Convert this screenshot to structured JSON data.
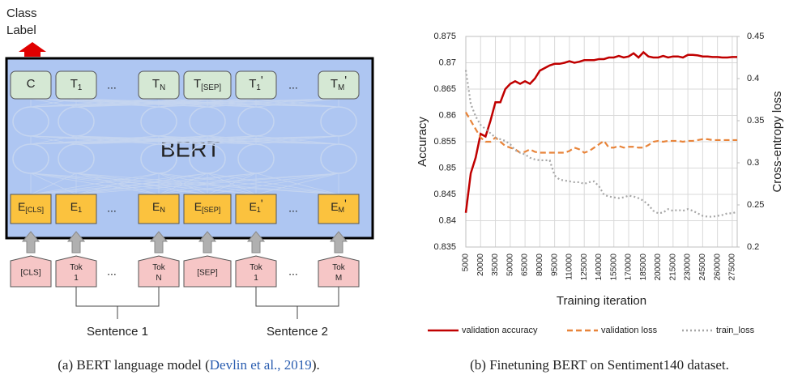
{
  "diagram": {
    "class_label": [
      "Class",
      "Label"
    ],
    "model_name": "BERT",
    "outputs": [
      {
        "text": "C"
      },
      {
        "text": "T",
        "sub": "1"
      },
      "...",
      {
        "text": "T",
        "sub": "N"
      },
      {
        "text": "T",
        "sub": "[SEP]"
      },
      {
        "text": "T",
        "sub": "1",
        "prime": "'"
      },
      "...",
      {
        "text": "T",
        "sub": "M",
        "prime": "'"
      }
    ],
    "embeddings": [
      {
        "text": "E",
        "sub": "[CLS]"
      },
      {
        "text": "E",
        "sub": "1"
      },
      "...",
      {
        "text": "E",
        "sub": "N"
      },
      {
        "text": "E",
        "sub": "[SEP]"
      },
      {
        "text": "E",
        "sub": "1",
        "prime": "'"
      },
      "...",
      {
        "text": "E",
        "sub": "M",
        "prime": "'"
      }
    ],
    "inputs": [
      {
        "lines": [
          "[CLS]"
        ]
      },
      {
        "lines": [
          "Tok",
          "1"
        ]
      },
      "...",
      {
        "lines": [
          "Tok",
          "N"
        ]
      },
      {
        "lines": [
          "[SEP]"
        ]
      },
      {
        "lines": [
          "Tok",
          "1"
        ]
      },
      "...",
      {
        "lines": [
          "Tok",
          "M"
        ]
      }
    ],
    "sentences": [
      "Sentence 1",
      "Sentence 2"
    ],
    "caption": {
      "before": "(a)  BERT language model (",
      "cite": "Devlin et al., 2019",
      "after": ")."
    }
  },
  "chart_data": {
    "type": "line",
    "caption": "(b)  Finetuning BERT on Sentiment140 dataset.",
    "xlabel": "Training iteration",
    "ylabel": "Accuracy",
    "y2label": "Cross-entropy loss",
    "x": [
      5000,
      10000,
      15000,
      20000,
      25000,
      30000,
      35000,
      40000,
      45000,
      50000,
      55000,
      60000,
      65000,
      70000,
      75000,
      80000,
      85000,
      90000,
      95000,
      100000,
      105000,
      110000,
      115000,
      120000,
      125000,
      130000,
      135000,
      140000,
      145000,
      150000,
      155000,
      160000,
      165000,
      170000,
      175000,
      180000,
      185000,
      190000,
      195000,
      200000,
      205000,
      210000,
      215000,
      220000,
      225000,
      230000,
      235000,
      240000,
      245000,
      250000,
      255000,
      260000,
      265000,
      270000,
      275000,
      280000
    ],
    "xlim": [
      5000,
      280000
    ],
    "xticks": [
      5000,
      20000,
      35000,
      50000,
      65000,
      80000,
      95000,
      110000,
      125000,
      140000,
      155000,
      170000,
      185000,
      200000,
      215000,
      230000,
      245000,
      260000,
      275000
    ],
    "ylim": [
      0.835,
      0.875
    ],
    "yticks": [
      0.835,
      0.84,
      0.845,
      0.85,
      0.855,
      0.86,
      0.865,
      0.87,
      0.875
    ],
    "y2lim": [
      0.2,
      0.45
    ],
    "y2ticks": [
      0.2,
      0.25,
      0.3,
      0.35,
      0.4,
      0.45
    ],
    "grid": true,
    "series": [
      {
        "name": "validation accuracy",
        "color": "#c00000",
        "style": "solid",
        "values": [
          0.8415,
          0.849,
          0.852,
          0.8565,
          0.856,
          0.859,
          0.8625,
          0.8625,
          0.865,
          0.866,
          0.8665,
          0.866,
          0.8665,
          0.866,
          0.867,
          0.8685,
          0.869,
          0.8695,
          0.8698,
          0.8698,
          0.87,
          0.8703,
          0.87,
          0.8702,
          0.8705,
          0.8705,
          0.8705,
          0.8707,
          0.8707,
          0.871,
          0.871,
          0.8713,
          0.871,
          0.8712,
          0.8718,
          0.871,
          0.872,
          0.8712,
          0.871,
          0.871,
          0.8713,
          0.871,
          0.8712,
          0.8712,
          0.871,
          0.8715,
          0.8715,
          0.8714,
          0.8712,
          0.8712,
          0.8711,
          0.8711,
          0.871,
          0.871,
          0.8711,
          0.8711
        ]
      },
      {
        "name": "validation loss",
        "color": "#e8843a",
        "style": "dashed",
        "axis": "y2",
        "values": [
          0.36,
          0.35,
          0.34,
          0.33,
          0.325,
          0.325,
          0.33,
          0.325,
          0.32,
          0.318,
          0.316,
          0.312,
          0.313,
          0.316,
          0.313,
          0.312,
          0.312,
          0.312,
          0.312,
          0.312,
          0.312,
          0.314,
          0.318,
          0.316,
          0.312,
          0.314,
          0.318,
          0.322,
          0.326,
          0.318,
          0.318,
          0.32,
          0.318,
          0.319,
          0.319,
          0.318,
          0.318,
          0.321,
          0.325,
          0.326,
          0.325,
          0.326,
          0.326,
          0.326,
          0.325,
          0.326,
          0.326,
          0.327,
          0.328,
          0.328,
          0.327,
          0.327,
          0.327,
          0.327,
          0.327,
          0.327
        ]
      },
      {
        "name": "train_loss",
        "color": "#a6a6a6",
        "style": "dotted",
        "axis": "y2",
        "values": [
          0.41,
          0.37,
          0.355,
          0.345,
          0.34,
          0.335,
          0.33,
          0.328,
          0.326,
          0.322,
          0.315,
          0.312,
          0.31,
          0.306,
          0.304,
          0.303,
          0.303,
          0.303,
          0.285,
          0.28,
          0.279,
          0.278,
          0.277,
          0.277,
          0.275,
          0.277,
          0.278,
          0.272,
          0.262,
          0.26,
          0.259,
          0.258,
          0.259,
          0.261,
          0.26,
          0.258,
          0.255,
          0.25,
          0.243,
          0.24,
          0.241,
          0.245,
          0.243,
          0.244,
          0.243,
          0.245,
          0.243,
          0.24,
          0.237,
          0.236,
          0.236,
          0.237,
          0.238,
          0.24,
          0.24,
          0.242
        ]
      }
    ]
  }
}
